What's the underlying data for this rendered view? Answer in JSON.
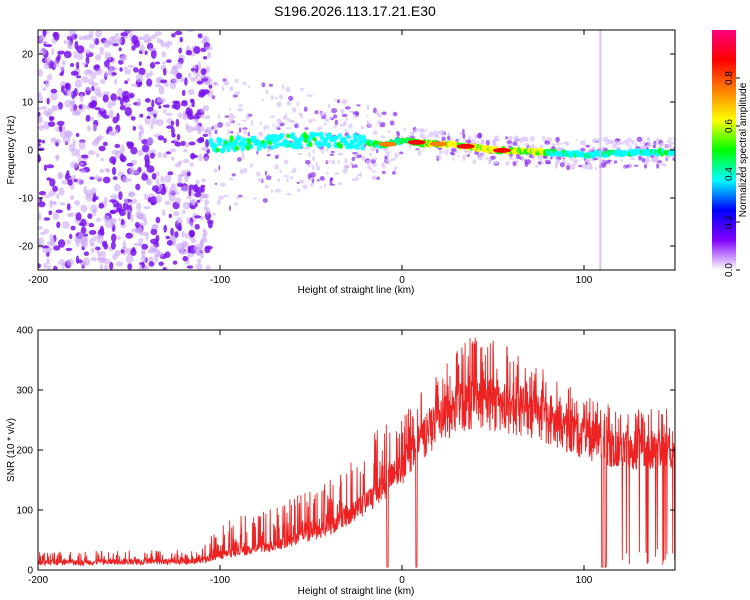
{
  "title": "S196.2026.113.17.21.E30",
  "chart_data": [
    {
      "type": "heatmap",
      "subtype": "spectrogram",
      "xlabel": "Height of straight line (km)",
      "ylabel": "Frequency (Hz)",
      "xlim": [
        -200,
        150
      ],
      "ylim": [
        -25,
        25
      ],
      "xticks": [
        -200,
        -100,
        0,
        100
      ],
      "yticks": [
        -20,
        -10,
        0,
        10,
        20
      ],
      "colorbar": {
        "label": "Normalized spectral amplitude",
        "range": [
          0,
          1
        ],
        "ticks": [
          0.0,
          0.2,
          0.4,
          0.6,
          0.8
        ],
        "tick_labels": [
          "0.0",
          "0.2",
          "0.4",
          "0.6",
          "0.8"
        ],
        "colors": [
          "#ffffff",
          "#8000ff",
          "#0000ff",
          "#00ffff",
          "#00ff00",
          "#ffff00",
          "#ff8000",
          "#ff0000",
          "#ff0080"
        ]
      },
      "noise_region": {
        "x_range": [
          -200,
          -105
        ],
        "freq_range": [
          -25,
          25
        ],
        "amplitude": 0.15
      },
      "ridge": [
        {
          "x": -100,
          "f": 1.0
        },
        {
          "x": -80,
          "f": 1.5
        },
        {
          "x": -60,
          "f": 2.0
        },
        {
          "x": -40,
          "f": 2.0
        },
        {
          "x": -20,
          "f": 1.5
        },
        {
          "x": -10,
          "f": 1.0
        },
        {
          "x": 0,
          "f": 2.0
        },
        {
          "x": 10,
          "f": 1.5
        },
        {
          "x": 30,
          "f": 1.0
        },
        {
          "x": 50,
          "f": 0.0
        },
        {
          "x": 80,
          "f": -0.5
        },
        {
          "x": 100,
          "f": -1.0
        },
        {
          "x": 130,
          "f": -0.5
        },
        {
          "x": 150,
          "f": -0.5
        }
      ],
      "vertical_artifact_x": 109
    },
    {
      "type": "line",
      "xlabel": "Height of straight line (km)",
      "ylabel": "SNR (10 * v/v)",
      "xlim": [
        -200,
        150
      ],
      "ylim": [
        0,
        400
      ],
      "xticks": [
        -200,
        -100,
        0,
        100
      ],
      "yticks": [
        0,
        100,
        200,
        300,
        400
      ],
      "color": "#ee2222",
      "envelope": [
        {
          "x": -200,
          "base": 12,
          "spike": 30
        },
        {
          "x": -110,
          "base": 15,
          "spike": 35
        },
        {
          "x": -100,
          "base": 25,
          "spike": 80
        },
        {
          "x": -70,
          "base": 40,
          "spike": 110
        },
        {
          "x": -40,
          "base": 70,
          "spike": 150
        },
        {
          "x": -20,
          "base": 110,
          "spike": 220
        },
        {
          "x": 0,
          "base": 170,
          "spike": 260
        },
        {
          "x": 20,
          "base": 250,
          "spike": 330
        },
        {
          "x": 40,
          "base": 280,
          "spike": 400
        },
        {
          "x": 60,
          "base": 270,
          "spike": 370
        },
        {
          "x": 80,
          "base": 250,
          "spike": 330
        },
        {
          "x": 100,
          "base": 220,
          "spike": 290
        },
        {
          "x": 120,
          "base": 200,
          "spike": 270
        },
        {
          "x": 150,
          "base": 200,
          "spike": 270
        }
      ],
      "dropouts": [
        {
          "x": -8,
          "value": 5
        },
        {
          "x": 8,
          "value": 5
        },
        {
          "x": 110,
          "value": 5
        },
        {
          "x": 112,
          "value": 5
        }
      ]
    }
  ]
}
